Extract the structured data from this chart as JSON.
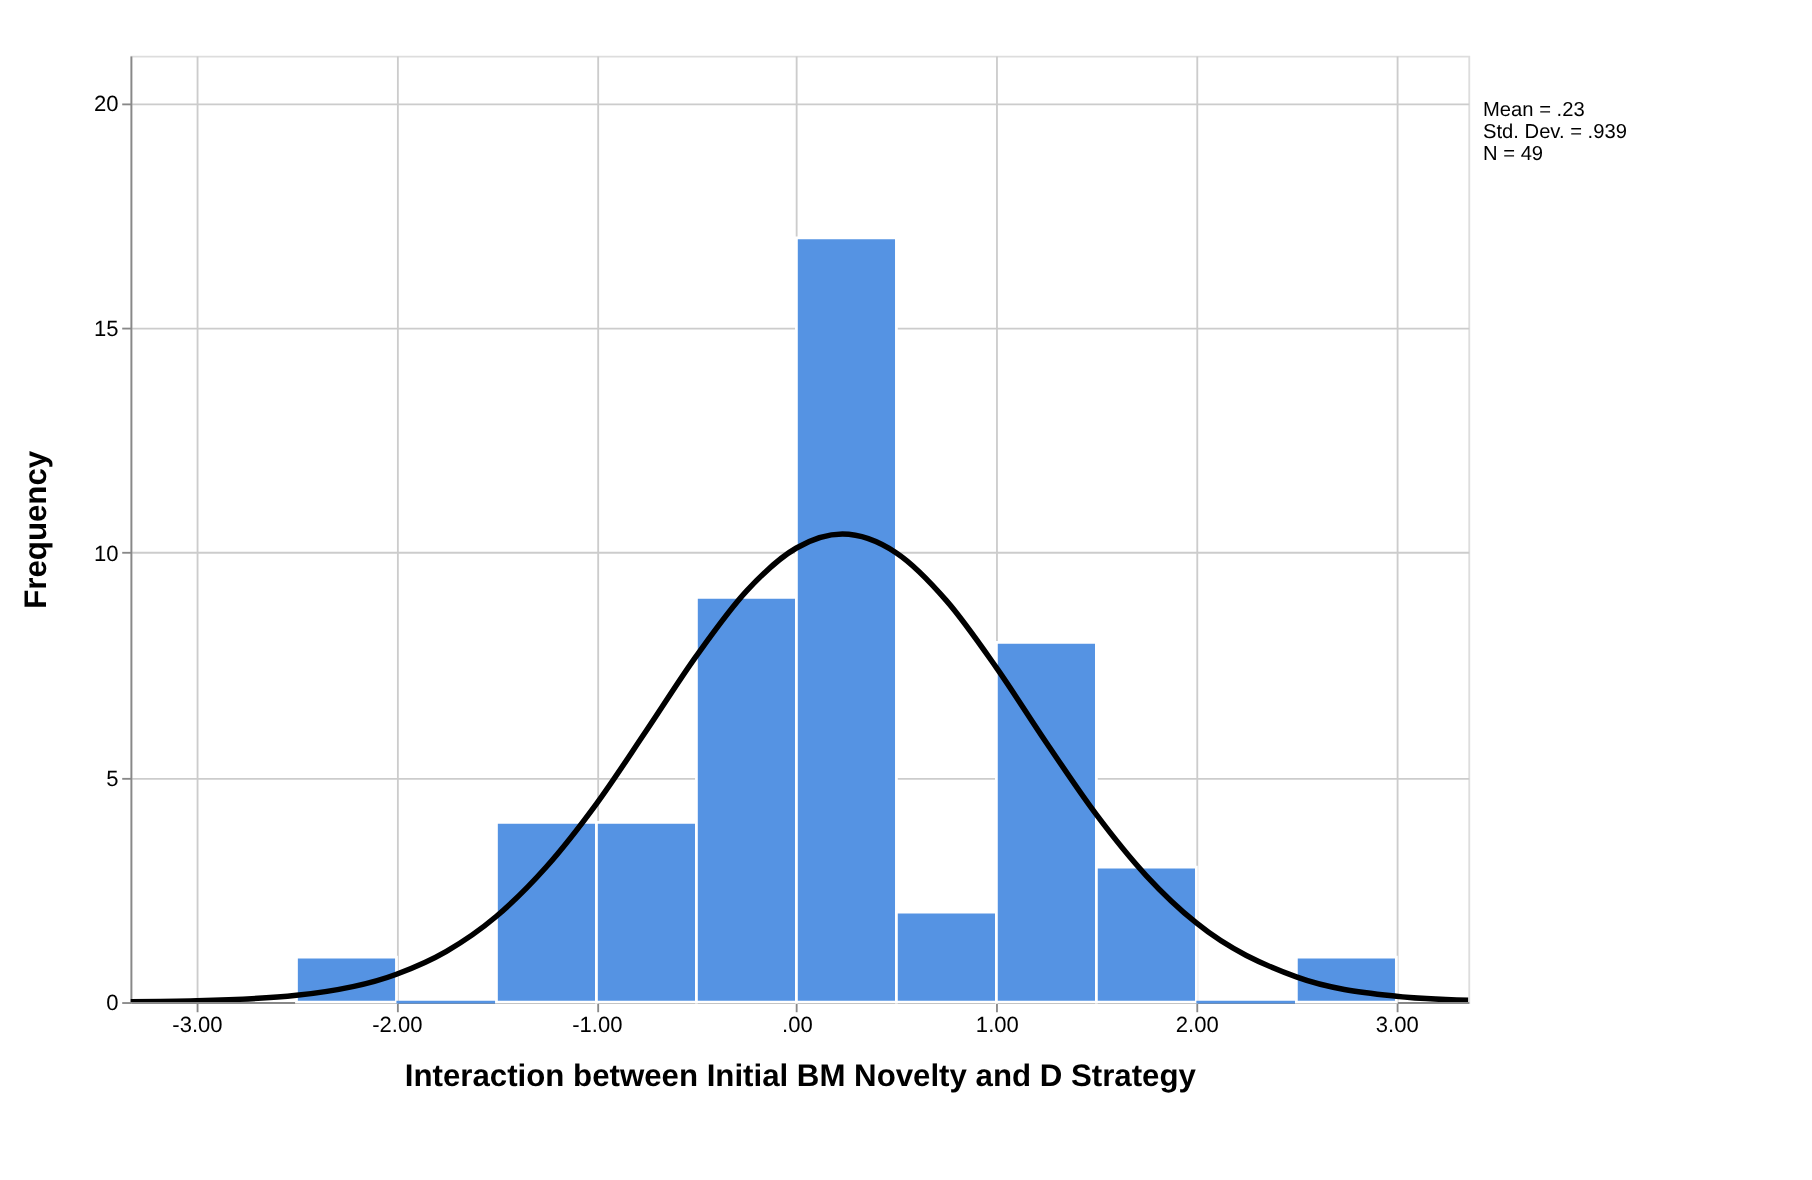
{
  "chart_data": {
    "type": "histogram",
    "xlabel": "Interaction between Initial BM Novelty and D Strategy",
    "ylabel": "Frequency",
    "bins": [
      -2.5,
      -2.0,
      -1.5,
      -1.0,
      -0.5,
      0.0,
      0.5,
      1.0,
      1.5,
      2.0,
      2.5,
      3.0
    ],
    "values": [
      1,
      0,
      4,
      4,
      9,
      17,
      2,
      8,
      3,
      0,
      1
    ],
    "color": "#5593e3",
    "series": [
      {
        "type": "line",
        "color": "#000000",
        "x": [
          -3.33,
          -3.0,
          -2.5,
          -2.0,
          -1.75,
          -1.5,
          -1.25,
          -1.0,
          -0.75,
          -0.5,
          -0.25,
          0.0,
          0.23,
          0.5,
          0.75,
          1.0,
          1.25,
          1.5,
          1.75,
          2.0,
          2.5,
          3.0,
          3.36
        ],
        "values": [
          0.01,
          0.03,
          0.15,
          0.62,
          1.13,
          1.91,
          3.01,
          4.41,
          6.04,
          7.7,
          9.14,
          10.1,
          10.41,
          9.99,
          8.93,
          7.44,
          5.77,
          4.17,
          2.81,
          1.76,
          0.56,
          0.13,
          0.04
        ]
      }
    ],
    "xlim": [
      -3.33,
      3.36
    ],
    "ylim": [
      0,
      21.05
    ],
    "xticks": [
      {
        "value": -3,
        "label": "-3.00"
      },
      {
        "value": -2,
        "label": "-2.00"
      },
      {
        "value": -1,
        "label": "-1.00"
      },
      {
        "value": 0,
        "label": ".00"
      },
      {
        "value": 1,
        "label": "1.00"
      },
      {
        "value": 2,
        "label": "2.00"
      },
      {
        "value": 3,
        "label": "3.00"
      }
    ],
    "yticks": [
      0,
      5,
      10,
      15,
      20
    ],
    "grid": true,
    "annotations": [
      "Mean = .23",
      "Std. Dev. = .939",
      "N = 49"
    ]
  }
}
